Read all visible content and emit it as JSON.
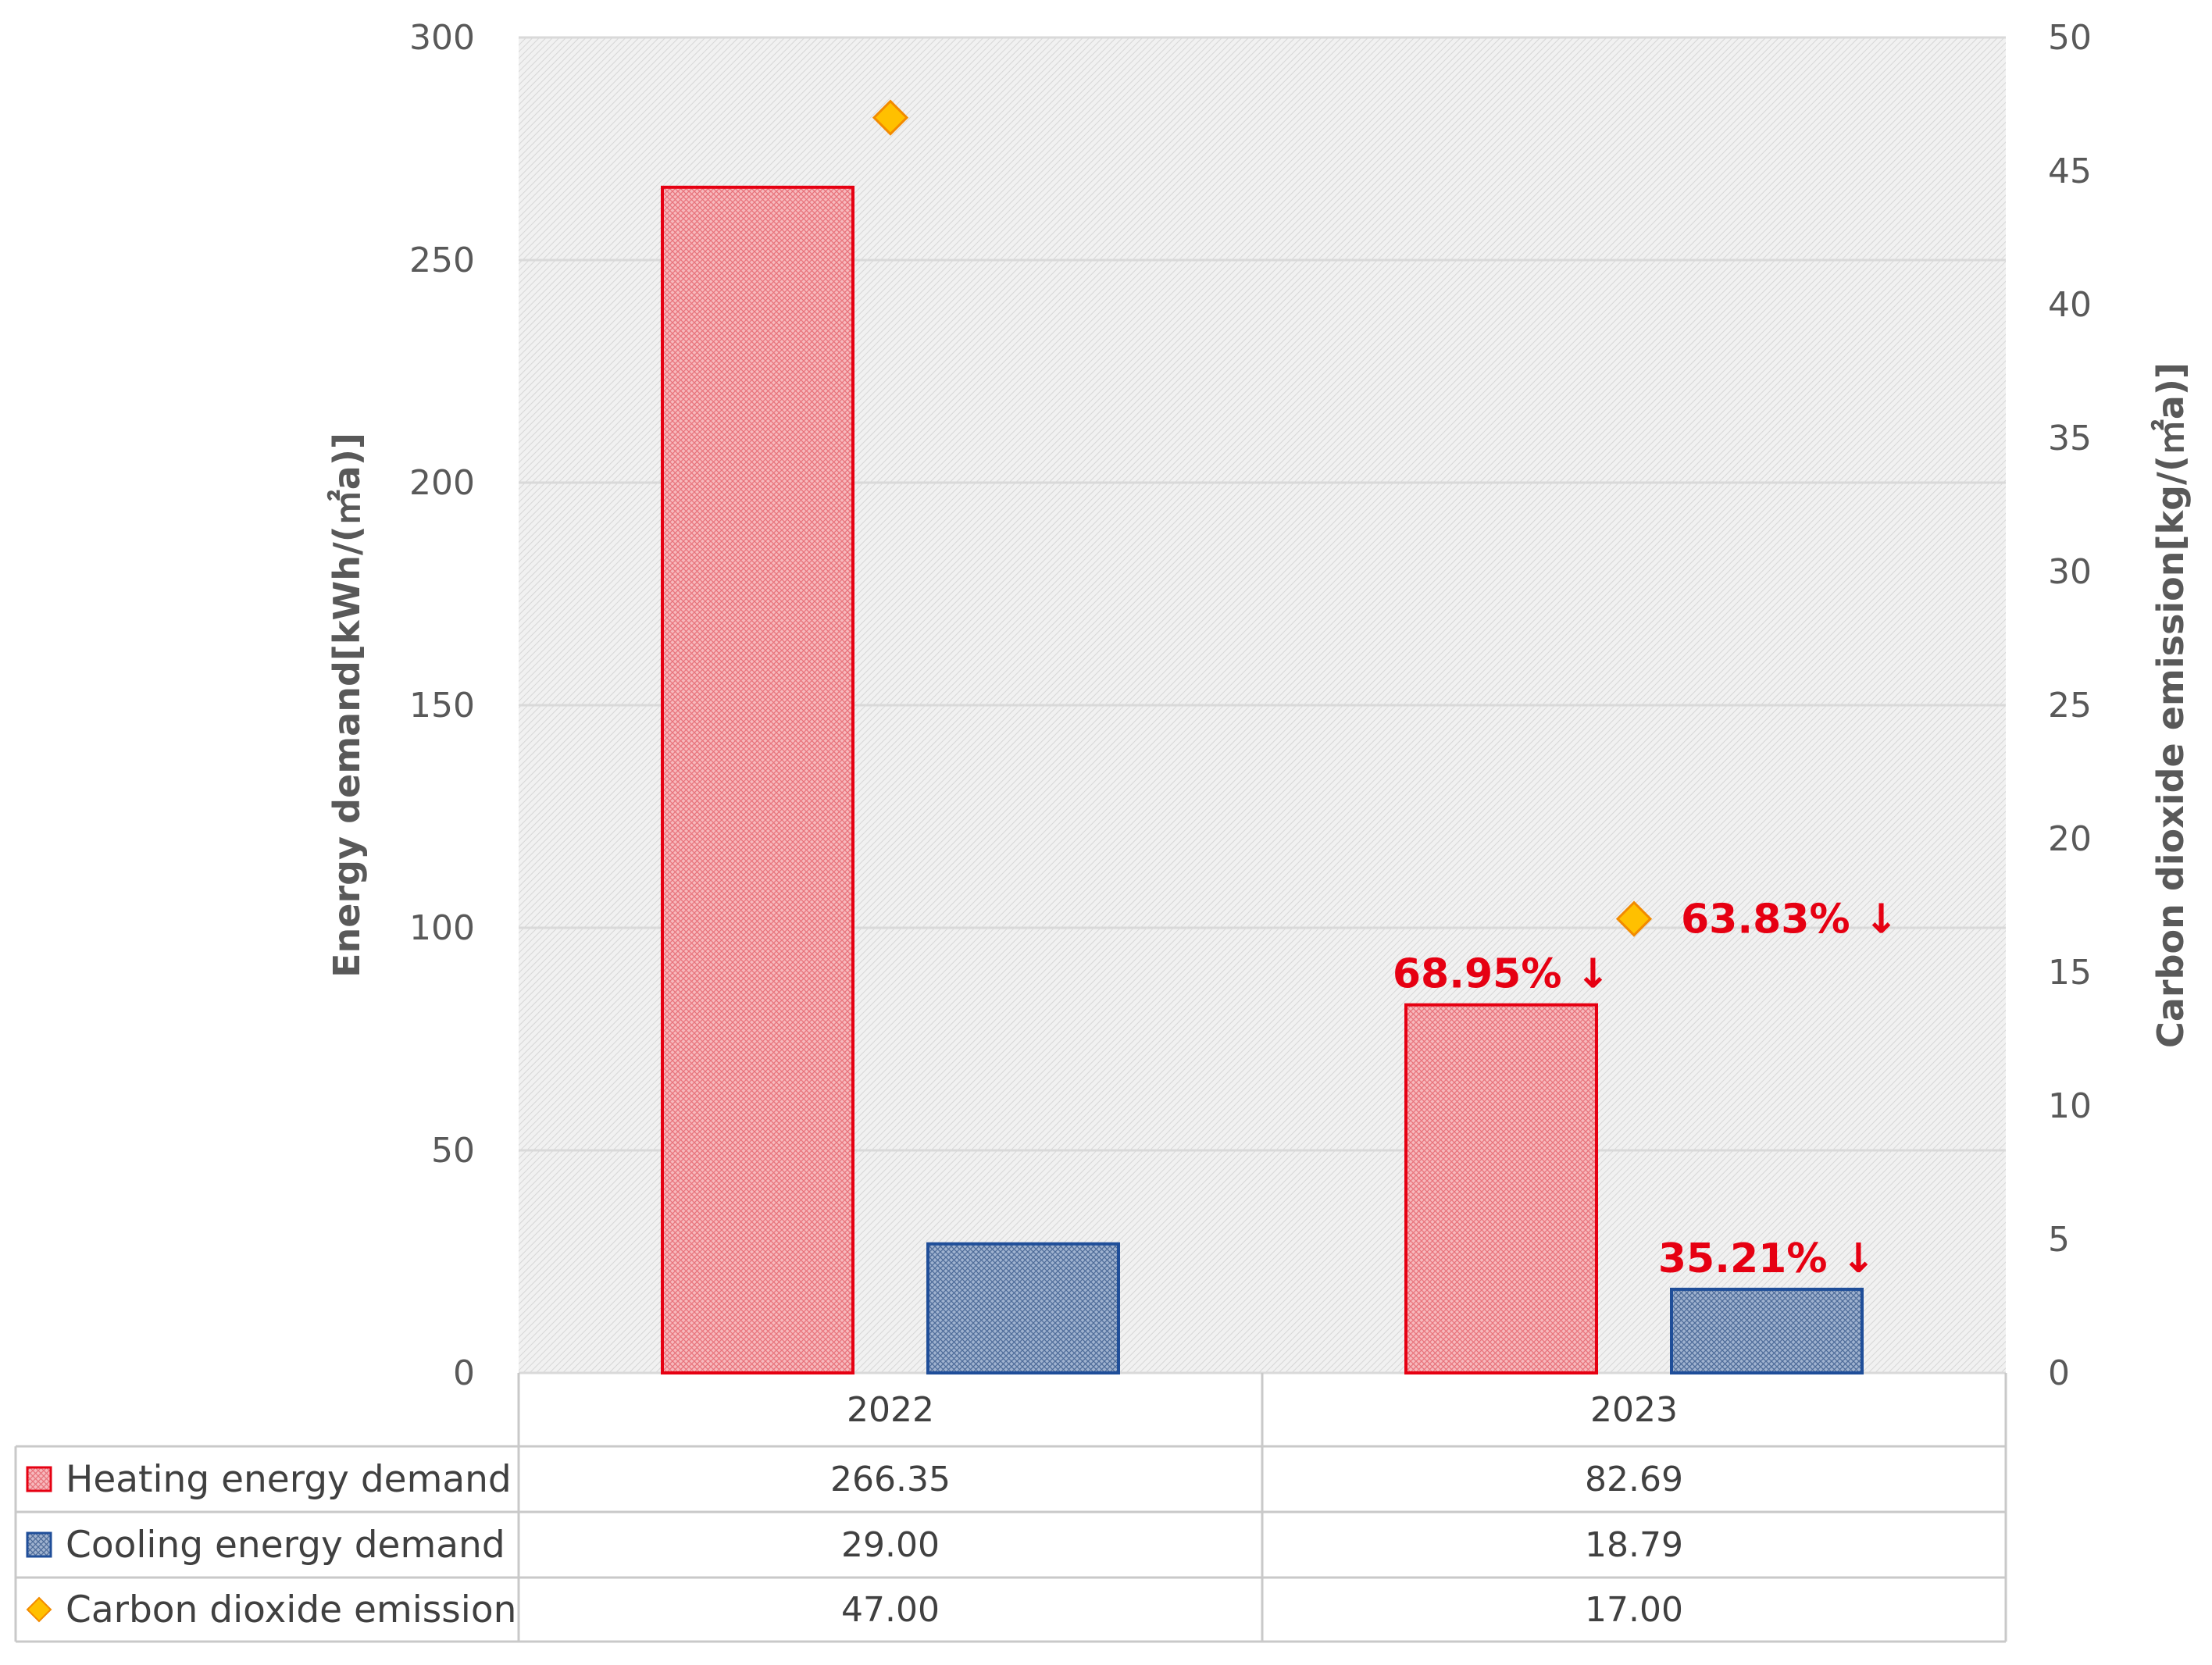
{
  "chart_data": {
    "type": "bar",
    "categories": [
      "2022",
      "2023"
    ],
    "series": [
      {
        "name": "Heating energy demand",
        "axis": "left",
        "kind": "bar",
        "values": [
          266.35,
          82.69
        ],
        "values_text": [
          "266.35",
          "82.69"
        ],
        "fill": "#f4a3a8",
        "stroke": "#e60012"
      },
      {
        "name": "Cooling energy demand",
        "axis": "left",
        "kind": "bar",
        "values": [
          29.0,
          18.79
        ],
        "values_text": [
          "29.00",
          "18.79"
        ],
        "fill": "#7d96bb",
        "stroke": "#1f4e99"
      },
      {
        "name": "Carbon dioxide emission",
        "axis": "right",
        "kind": "marker",
        "values": [
          47.0,
          17.0
        ],
        "values_text": [
          "47.00",
          "17.00"
        ],
        "fill": "#ffc000",
        "stroke": "#f28a00"
      }
    ],
    "y_left": {
      "label": "Energy demand[kWh/(㎡a)]",
      "ylim": [
        0,
        300
      ],
      "ticks": [
        "0",
        "50",
        "100",
        "150",
        "200",
        "250",
        "300"
      ]
    },
    "y_right": {
      "label": "Carbon dioxide emission[kg/(㎡a)]",
      "ylim": [
        0,
        50
      ],
      "ticks": [
        "0",
        "5",
        "10",
        "15",
        "20",
        "25",
        "30",
        "35",
        "40",
        "45",
        "50"
      ]
    },
    "annotations": [
      {
        "series": "Heating energy demand",
        "category": "2023",
        "text": "68.95% ↓"
      },
      {
        "series": "Cooling energy demand",
        "category": "2023",
        "text": "35.21% ↓"
      },
      {
        "series": "Carbon dioxide emission",
        "category": "2023",
        "text": "63.83% ↓"
      }
    ],
    "grid": true,
    "legend": "data-table-below",
    "annotation_color": "#e60012"
  }
}
